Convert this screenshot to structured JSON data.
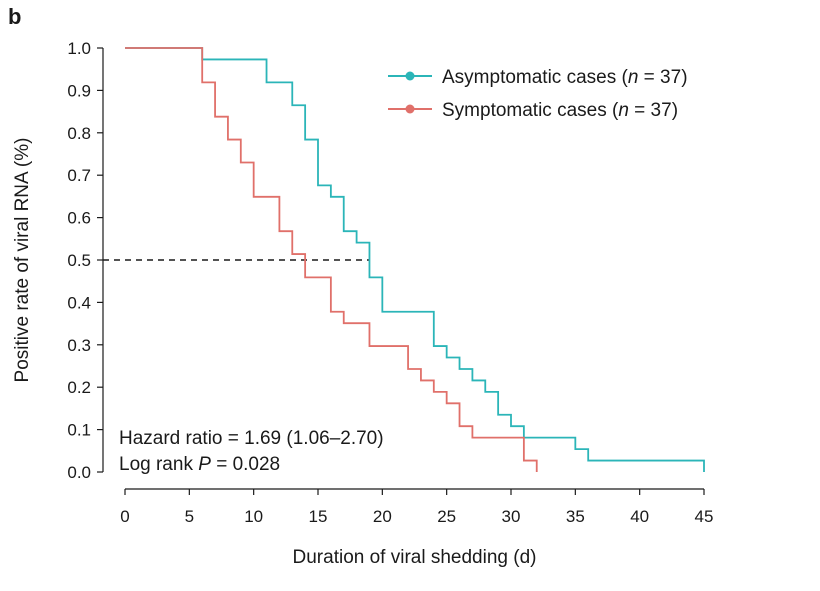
{
  "chart_data": {
    "type": "line",
    "panel_label": "b",
    "xlabel": "Duration of viral shedding (d)",
    "ylabel": "Positive rate of viral RNA (%)",
    "xlim": [
      0,
      45
    ],
    "ylim": [
      0,
      1
    ],
    "xticks": [
      0,
      5,
      10,
      15,
      20,
      25,
      30,
      35,
      40,
      45
    ],
    "yticks": [
      "0.0",
      "0.1",
      "0.2",
      "0.3",
      "0.4",
      "0.5",
      "0.6",
      "0.7",
      "0.8",
      "0.9",
      "1.0"
    ],
    "grid": false,
    "legend_position": "top-right",
    "series": [
      {
        "name": "Asymptomatic cases (n = 37)",
        "legend_prefix": "Asymptomatic cases (",
        "legend_n": "n",
        "legend_suffix": " = 37)",
        "color": "#2bb5b8",
        "steps": [
          [
            0,
            1.0
          ],
          [
            6,
            0.973
          ],
          [
            11,
            0.919
          ],
          [
            13,
            0.865
          ],
          [
            14,
            0.784
          ],
          [
            15,
            0.676
          ],
          [
            16,
            0.649
          ],
          [
            17,
            0.568
          ],
          [
            18,
            0.541
          ],
          [
            19,
            0.459
          ],
          [
            20,
            0.378
          ],
          [
            24,
            0.297
          ],
          [
            25,
            0.27
          ],
          [
            26,
            0.243
          ],
          [
            27,
            0.216
          ],
          [
            28,
            0.189
          ],
          [
            29,
            0.135
          ],
          [
            30,
            0.108
          ],
          [
            31,
            0.081
          ],
          [
            35,
            0.054
          ],
          [
            36,
            0.027
          ],
          [
            45,
            0.0
          ]
        ]
      },
      {
        "name": "Symptomatic cases (n = 37)",
        "legend_prefix": "Symptomatic cases (",
        "legend_n": "n",
        "legend_suffix": " = 37)",
        "color": "#e0706a",
        "steps": [
          [
            0,
            1.0
          ],
          [
            6,
            0.919
          ],
          [
            7,
            0.838
          ],
          [
            8,
            0.784
          ],
          [
            9,
            0.73
          ],
          [
            10,
            0.649
          ],
          [
            12,
            0.568
          ],
          [
            13,
            0.514
          ],
          [
            14,
            0.459
          ],
          [
            16,
            0.378
          ],
          [
            17,
            0.351
          ],
          [
            19,
            0.297
          ],
          [
            22,
            0.243
          ],
          [
            23,
            0.216
          ],
          [
            24,
            0.189
          ],
          [
            25,
            0.162
          ],
          [
            26,
            0.108
          ],
          [
            27,
            0.081
          ],
          [
            31,
            0.027
          ],
          [
            32,
            0.0
          ]
        ]
      }
    ],
    "reference_line": {
      "y": 0.5,
      "x_start": 0,
      "x_end": 19,
      "style": "dashed"
    },
    "annotations": {
      "hazard": "Hazard ratio = 1.69 (1.06–2.70)",
      "logrank_prefix": "Log rank ",
      "logrank_p": "P",
      "logrank_suffix": " = 0.028"
    }
  }
}
